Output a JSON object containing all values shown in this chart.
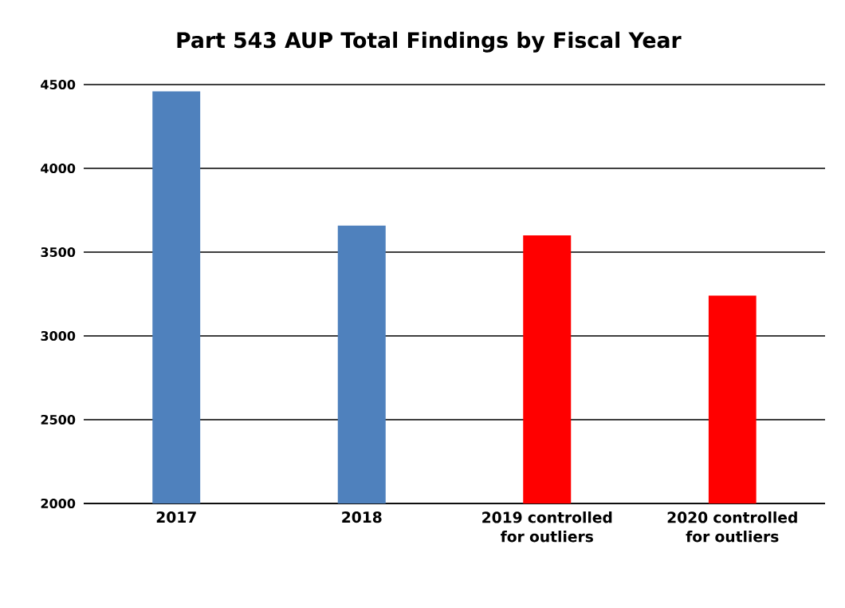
{
  "chart_data": {
    "type": "bar",
    "title": "Part 543 AUP Total Findings by Fiscal Year",
    "categories": [
      "2017",
      "2018",
      "2019 controlled for outliers",
      "2020 controlled for outliers"
    ],
    "values": [
      4460,
      3660,
      3600,
      3240
    ],
    "colors": [
      "#4f81bd",
      "#4f81bd",
      "#ff0000",
      "#ff0000"
    ],
    "ylim": [
      2000,
      4500
    ],
    "yticks": [
      2000,
      2500,
      3000,
      3500,
      4000,
      4500
    ],
    "grid": "y"
  }
}
